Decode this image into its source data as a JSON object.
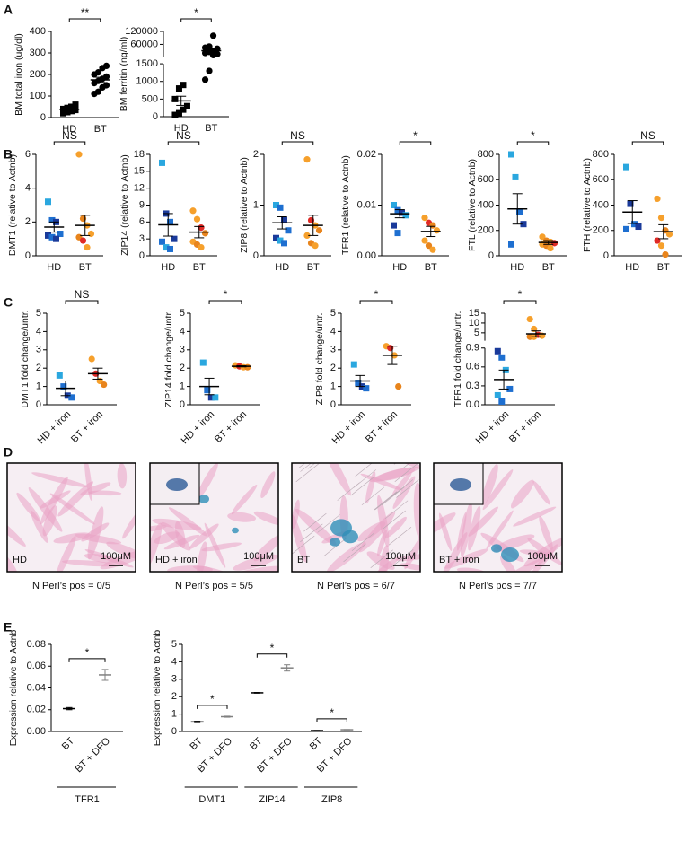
{
  "panel_labels": [
    "A",
    "B",
    "C",
    "D",
    "E"
  ],
  "chart_data": [
    {
      "type": "dot",
      "ylabel": "BM total iron (ug/dl)",
      "ylim": [
        0,
        400
      ],
      "yticks": [
        0,
        100,
        200,
        300,
        400
      ],
      "significance": "**",
      "groups": [
        {
          "name": "HD",
          "marker": "square",
          "color": "#000000",
          "values": [
            20,
            25,
            30,
            35,
            40,
            45,
            50,
            60
          ],
          "mean": 38,
          "error": 5
        },
        {
          "name": "BT",
          "marker": "circle",
          "color": "#000000",
          "values": [
            110,
            120,
            140,
            150,
            160,
            170,
            180,
            190,
            200,
            210,
            230,
            240
          ],
          "mean": 175,
          "error": 12
        }
      ]
    },
    {
      "type": "dot",
      "ylabel": "BM ferritin (ng/ml)",
      "significance": "*",
      "segments": [
        {
          "ylim": [
            0,
            1500
          ],
          "yticks": [
            0,
            500,
            1000,
            1500
          ]
        },
        {
          "ylim": [
            1500,
            120000
          ],
          "yticks": [
            60000,
            120000
          ]
        }
      ],
      "groups": [
        {
          "name": "HD",
          "marker": "square",
          "color": "#000000",
          "values": [
            50,
            100,
            200,
            300,
            500,
            800,
            900
          ],
          "mean": 450,
          "error": 130
        },
        {
          "name": "BT",
          "marker": "circle",
          "color": "#000000",
          "values": [
            1050,
            1300,
            10000,
            15000,
            20000,
            25000,
            30000,
            40000,
            45000,
            50000,
            100000
          ],
          "mean": 30700,
          "error": 8500
        }
      ]
    },
    {
      "type": "dot",
      "ylabel": "DMT1 (relative to Actnb)",
      "ylim": [
        0,
        6
      ],
      "yticks": [
        0,
        2,
        4,
        6
      ],
      "significance": "NS",
      "groups": [
        {
          "name": "HD",
          "marker": "square",
          "colors": [
            "#2aa7df",
            "#1e6fd0",
            "#1a3a9a",
            "#1e6fd0",
            "#1a3a9a",
            "#1e6fd0",
            "#1a3a9a"
          ],
          "values": [
            3.2,
            2.1,
            2.0,
            1.3,
            1.2,
            1.1,
            1.0
          ],
          "mean": 1.7,
          "error": 0.3
        },
        {
          "name": "BT",
          "marker": "circle",
          "colors": [
            "#f6a02c",
            "#e8841c",
            "#f6a02c",
            "#f6a02c",
            "#e8841c",
            "#e02a26",
            "#f6a02c"
          ],
          "values": [
            6.0,
            2.2,
            1.8,
            1.3,
            1.1,
            0.9,
            0.5
          ],
          "mean": 1.8,
          "error": 0.6
        }
      ]
    },
    {
      "type": "dot",
      "ylabel": "ZIP14 (relative to Actnb)",
      "ylim": [
        0,
        18
      ],
      "yticks": [
        0,
        3,
        6,
        9,
        12,
        15,
        18
      ],
      "significance": "NS",
      "groups": [
        {
          "name": "HD",
          "marker": "square",
          "colors": [
            "#2aa7df",
            "#1a3a9a",
            "#1e6fd0",
            "#1a3a9a",
            "#1e6fd0",
            "#2aa7df",
            "#1e6fd0"
          ],
          "values": [
            16.5,
            7.5,
            6.0,
            3.0,
            2.5,
            1.5,
            1.2
          ],
          "mean": 5.5,
          "error": 2.0
        },
        {
          "name": "BT",
          "marker": "circle",
          "colors": [
            "#f6a02c",
            "#f6a02c",
            "#e02a26",
            "#e8841c",
            "#f6a02c",
            "#e8841c",
            "#f6a02c"
          ],
          "values": [
            8.0,
            6.5,
            5.0,
            4.0,
            2.5,
            2.0,
            1.5
          ],
          "mean": 4.2,
          "error": 1.0
        }
      ]
    },
    {
      "type": "dot",
      "ylabel": "ZIP8 (relative to Actnb)",
      "ylim": [
        0,
        2
      ],
      "yticks": [
        0,
        1,
        2
      ],
      "significance": "NS",
      "groups": [
        {
          "name": "HD",
          "marker": "square",
          "colors": [
            "#2aa7df",
            "#1e6fd0",
            "#1a3a9a",
            "#1e6fd0",
            "#1a3a9a",
            "#2aa7df",
            "#1e6fd0"
          ],
          "values": [
            1.0,
            0.95,
            0.7,
            0.5,
            0.35,
            0.3,
            0.25
          ],
          "mean": 0.65,
          "error": 0.12
        },
        {
          "name": "BT",
          "marker": "circle",
          "colors": [
            "#f6a02c",
            "#e02a26",
            "#f6a02c",
            "#e8841c",
            "#f6a02c",
            "#e8841c",
            "#f6a02c"
          ],
          "values": [
            1.9,
            0.7,
            0.6,
            0.5,
            0.4,
            0.25,
            0.2
          ],
          "mean": 0.6,
          "error": 0.2
        }
      ]
    },
    {
      "type": "dot",
      "ylabel": "TFR1 (relative to Actnb)",
      "ylim": [
        0,
        0.02
      ],
      "yticks": [
        {
          "value": 0,
          "label": "0.00"
        },
        0.01,
        0.02
      ],
      "significance": "*",
      "groups": [
        {
          "name": "HD",
          "marker": "square",
          "colors": [
            "#2aa7df",
            "#1e6fd0",
            "#1a3a9a",
            "#2aa7df",
            "#1a3a9a",
            "#1e6fd0"
          ],
          "values": [
            0.01,
            0.009,
            0.0085,
            0.008,
            0.006,
            0.0045
          ],
          "mean": 0.0083,
          "error": 0.0008
        },
        {
          "name": "BT",
          "marker": "circle",
          "colors": [
            "#f6a02c",
            "#e02a26",
            "#e8841c",
            "#f6a02c",
            "#f6a02c",
            "#e8841c",
            "#f6a02c"
          ],
          "values": [
            0.0075,
            0.0065,
            0.006,
            0.005,
            0.003,
            0.002,
            0.0012
          ],
          "mean": 0.0048,
          "error": 0.001
        }
      ]
    },
    {
      "type": "dot",
      "ylabel": "FTL (relative to Actnb)",
      "ylim": [
        0,
        800
      ],
      "yticks": [
        0,
        200,
        400,
        600,
        800
      ],
      "significance": "*",
      "groups": [
        {
          "name": "HD",
          "marker": "square",
          "colors": [
            "#2aa7df",
            "#2aa7df",
            "#1e6fd0",
            "#1a3a9a",
            "#1e6fd0"
          ],
          "values": [
            800,
            620,
            350,
            250,
            90
          ],
          "mean": 370,
          "error": 120
        },
        {
          "name": "BT",
          "marker": "circle",
          "colors": [
            "#f6a02c",
            "#e8841c",
            "#f6a02c",
            "#e02a26",
            "#f6a02c",
            "#e8841c",
            "#f6a02c"
          ],
          "values": [
            150,
            120,
            110,
            100,
            90,
            80,
            60
          ],
          "mean": 105,
          "error": 15
        }
      ]
    },
    {
      "type": "dot",
      "ylabel": "FTH (relative to Actnb)",
      "ylim": [
        0,
        800
      ],
      "yticks": [
        0,
        200,
        400,
        600,
        800
      ],
      "significance": "NS",
      "groups": [
        {
          "name": "HD",
          "marker": "square",
          "colors": [
            "#2aa7df",
            "#1a3a9a",
            "#1e6fd0",
            "#1a3a9a",
            "#1e6fd0"
          ],
          "values": [
            700,
            410,
            250,
            230,
            210
          ],
          "mean": 345,
          "error": 90
        },
        {
          "name": "BT",
          "marker": "circle",
          "colors": [
            "#f6a02c",
            "#f6a02c",
            "#e8841c",
            "#f6a02c",
            "#e02a26",
            "#f6a02c",
            "#e8841c"
          ],
          "values": [
            450,
            300,
            200,
            170,
            120,
            80,
            10
          ],
          "mean": 190,
          "error": 55
        }
      ]
    },
    {
      "type": "dot",
      "ylabel": "DMT1 fold change/untr.",
      "ylim": [
        0,
        5
      ],
      "yticks": [
        0,
        1,
        2,
        3,
        4,
        5
      ],
      "significance": "NS",
      "groups": [
        {
          "name": "HD + iron",
          "marker": "square",
          "colors": [
            "#2aa7df",
            "#1e6fd0",
            "#1a3a9a",
            "#1e6fd0"
          ],
          "values": [
            1.6,
            1.0,
            0.5,
            0.4
          ],
          "mean": 0.9,
          "error": 0.4
        },
        {
          "name": "BT + iron",
          "marker": "circle",
          "colors": [
            "#f6a02c",
            "#e02a26",
            "#f6a02c",
            "#e8841c"
          ],
          "values": [
            2.5,
            1.7,
            1.3,
            1.1
          ],
          "mean": 1.7,
          "error": 0.3
        }
      ]
    },
    {
      "type": "dot",
      "ylabel": "ZIP14 fold change/untr.",
      "ylim": [
        0,
        5
      ],
      "yticks": [
        0,
        1,
        2,
        3,
        4,
        5
      ],
      "significance": "*",
      "groups": [
        {
          "name": "HD + iron",
          "marker": "square",
          "colors": [
            "#2aa7df",
            "#1e6fd0",
            "#1a3a9a",
            "#2aa7df"
          ],
          "values": [
            2.3,
            0.8,
            0.4,
            0.4
          ],
          "mean": 1.0,
          "error": 0.45
        },
        {
          "name": "BT + iron",
          "marker": "circle",
          "colors": [
            "#f6a02c",
            "#e02a26",
            "#f6a02c",
            "#e8841c"
          ],
          "values": [
            2.15,
            2.1,
            2.05,
            2.05
          ],
          "mean": 2.1,
          "error": 0.03
        }
      ]
    },
    {
      "type": "dot",
      "ylabel": "ZIP8 fold change/untr.",
      "ylim": [
        0,
        5
      ],
      "yticks": [
        0,
        1,
        2,
        3,
        4,
        5
      ],
      "significance": "*",
      "groups": [
        {
          "name": "HD + iron",
          "marker": "square",
          "colors": [
            "#2aa7df",
            "#1e6fd0",
            "#1a3a9a",
            "#1e6fd0"
          ],
          "values": [
            2.2,
            1.2,
            1.0,
            0.9
          ],
          "mean": 1.3,
          "error": 0.3
        },
        {
          "name": "BT + iron",
          "marker": "circle",
          "colors": [
            "#f6a02c",
            "#e02a26",
            "#f6a02c",
            "#e8841c"
          ],
          "values": [
            3.2,
            3.1,
            2.7,
            1.0
          ],
          "mean": 2.7,
          "error": 0.5
        }
      ]
    },
    {
      "type": "dot",
      "ylabel": "TFR1 fold change/untr.",
      "significance": "*",
      "segments": [
        {
          "ylim": [
            0,
            0.9
          ],
          "yticks": [
            {
              "value": 0,
              "label": "0.0"
            },
            0.3,
            0.6,
            0.9
          ]
        },
        {
          "ylim": [
            1,
            15
          ],
          "yticks": [
            5,
            10,
            15
          ]
        }
      ],
      "groups": [
        {
          "name": "HD + iron",
          "marker": "square",
          "colors": [
            "#1a3a9a",
            "#1e6fd0",
            "#2aa7df",
            "#1e6fd0",
            "#2aa7df",
            "#1e6fd0"
          ],
          "values": [
            0.85,
            0.75,
            0.55,
            0.25,
            0.15,
            0.05
          ],
          "mean": 0.4,
          "error": 0.15
        },
        {
          "name": "BT + iron",
          "marker": "circle",
          "colors": [
            "#f6a02c",
            "#f6a02c",
            "#e02a26",
            "#f6a02c",
            "#e8841c",
            "#f6a02c"
          ],
          "values": [
            12,
            7,
            4,
            3.5,
            3,
            3
          ],
          "mean": 4.5,
          "error": 1.5
        }
      ]
    },
    {
      "type": "mean_error",
      "ylabel": "Expression relative to Actnb",
      "ylim": [
        0,
        0.08
      ],
      "yticks": [
        {
          "value": 0,
          "label": "0.00"
        },
        0.02,
        0.04,
        0.06,
        0.08
      ],
      "groups": [
        {
          "name": "TFR1",
          "significance": "*",
          "categories": [
            "BT",
            "BT + DFO"
          ],
          "means": [
            0.021,
            0.052
          ],
          "errors": [
            0.001,
            0.005
          ],
          "colors": [
            "#000000",
            "#808080"
          ]
        }
      ]
    },
    {
      "type": "mean_error",
      "ylabel": "Expression relative to Actnb",
      "ylim": [
        0,
        5
      ],
      "yticks": [
        0,
        1,
        2,
        3,
        4,
        5
      ],
      "groups": [
        {
          "name": "DMT1",
          "significance": "*",
          "categories": [
            "BT",
            "BT + DFO"
          ],
          "means": [
            0.55,
            0.85
          ],
          "errors": [
            0.04,
            0.03
          ],
          "colors": [
            "#000000",
            "#808080"
          ]
        },
        {
          "name": "ZIP14",
          "significance": "*",
          "categories": [
            "BT",
            "BT + DFO"
          ],
          "means": [
            2.22,
            3.65
          ],
          "errors": [
            0.02,
            0.18
          ],
          "colors": [
            "#000000",
            "#808080"
          ]
        },
        {
          "name": "ZIP8",
          "significance": "*",
          "categories": [
            "BT",
            "BT + DFO"
          ],
          "means": [
            0.05,
            0.1
          ],
          "errors": [
            0.01,
            0.01
          ],
          "colors": [
            "#000000",
            "#808080"
          ]
        }
      ]
    }
  ],
  "figure_images": [
    {
      "label": "HD",
      "scale_bar": "100μM",
      "caption": "N Perl’s pos = 0/5"
    },
    {
      "label": "HD + iron",
      "scale_bar": "100μM",
      "caption": "N Perl’s pos = 5/5"
    },
    {
      "label": "BT",
      "scale_bar": "100μM",
      "caption": "N Perl’s pos = 6/7"
    },
    {
      "label": "BT + iron",
      "scale_bar": "100μM",
      "caption": "N Perl’s pos = 7/7"
    }
  ]
}
